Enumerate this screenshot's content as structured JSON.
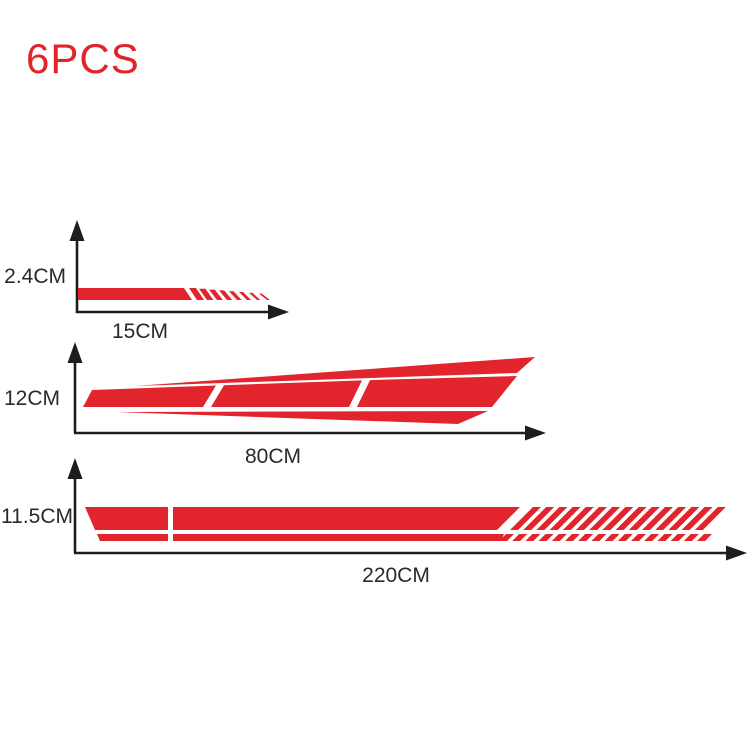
{
  "title": "6PCS",
  "colors": {
    "accent_red": "#e2242c",
    "line_black": "#1d1d1b"
  },
  "diagrams": [
    {
      "name": "small-stripe",
      "height_label": "2.4CM",
      "width_label": "15CM"
    },
    {
      "name": "medium-stripe",
      "height_label": "12CM",
      "width_label": "80CM"
    },
    {
      "name": "large-stripe",
      "height_label": "11.5CM",
      "width_label": "220CM"
    }
  ]
}
